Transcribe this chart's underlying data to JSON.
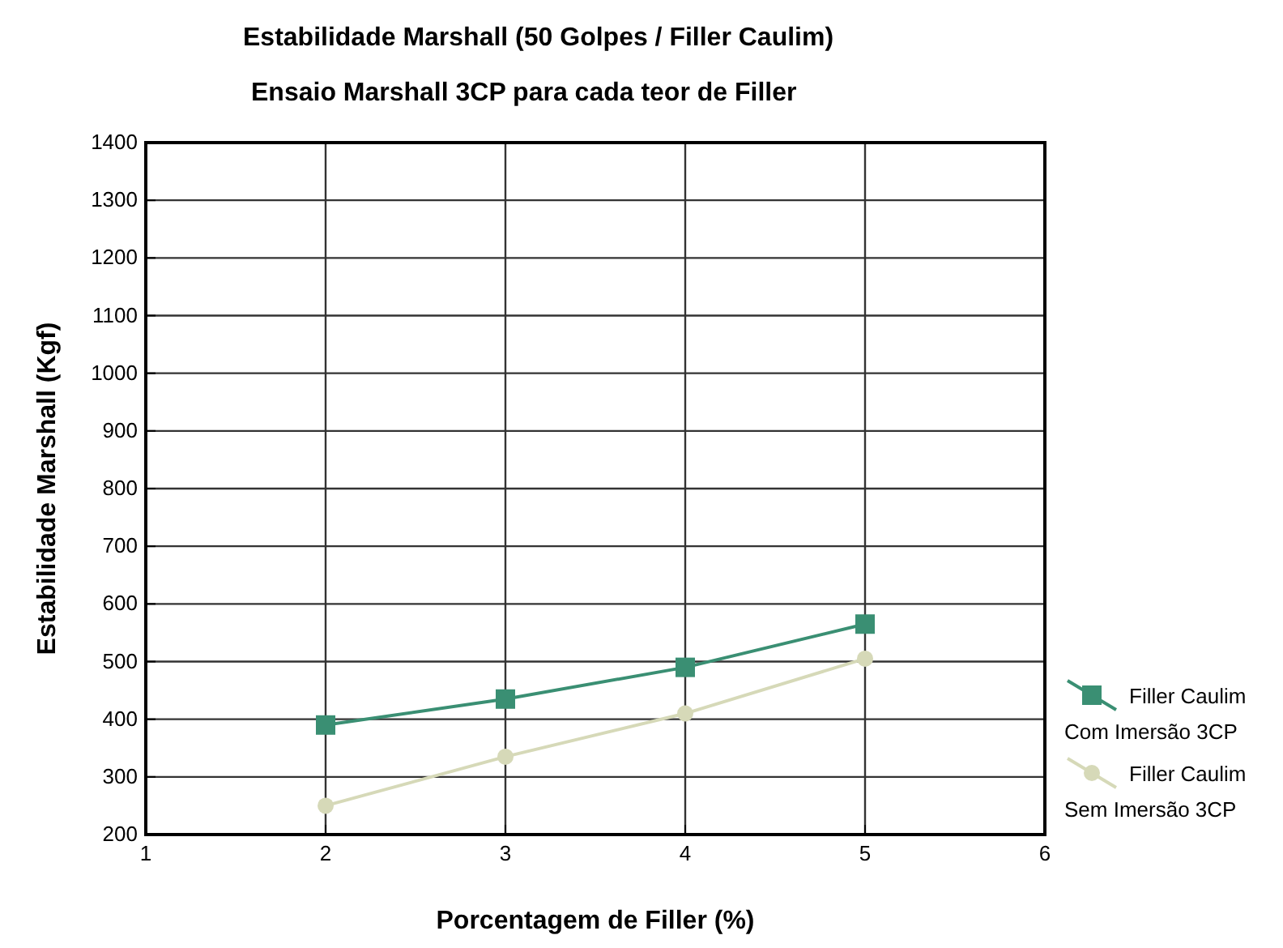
{
  "chart_data": {
    "type": "line",
    "title": "Estabilidade Marshall (50 Golpes / Filler Caulim)",
    "subtitle": "Ensaio Marshall 3CP para cada teor de Filler",
    "xlabel": "Porcentagem de Filler (%)",
    "ylabel": "Estabilidade Marshall (Kgf)",
    "x": [
      2,
      3,
      4,
      5
    ],
    "series": [
      {
        "name": "Filler Caulim\nCom Imersão 3CP",
        "color": "#3a8f73",
        "marker": "square",
        "values": [
          390,
          435,
          490,
          565
        ]
      },
      {
        "name": "Filler Caulim\nSem Imersão 3CP",
        "color": "#d6d9b8",
        "marker": "circle",
        "values": [
          250,
          335,
          410,
          505
        ]
      }
    ],
    "xlim": [
      1,
      6
    ],
    "xticks": [
      1,
      2,
      3,
      4,
      5,
      6
    ],
    "ylim": [
      200,
      1400
    ],
    "yticks": [
      200,
      300,
      400,
      500,
      600,
      700,
      800,
      900,
      1000,
      1100,
      1200,
      1300,
      1400
    ],
    "grid": true,
    "legend": "right"
  }
}
